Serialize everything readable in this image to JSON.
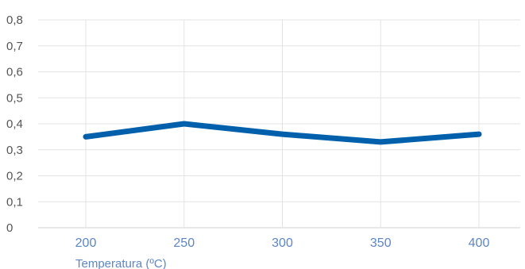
{
  "chart_data": {
    "type": "line",
    "x": [
      200,
      250,
      300,
      350,
      400
    ],
    "categories": [
      "200",
      "250",
      "300",
      "350",
      "400"
    ],
    "series": [
      {
        "values": [
          0.35,
          0.4,
          0.36,
          0.33,
          0.36
        ],
        "color": "#0060ac"
      }
    ],
    "xlabel": "Temperatura (ºC)",
    "ylabel": "",
    "ylim": [
      0,
      0.8
    ],
    "yticks": [
      "0",
      "0,1",
      "0,2",
      "0,3",
      "0,4",
      "0,5",
      "0,6",
      "0,7",
      "0,8"
    ],
    "grid": true,
    "colors": {
      "line": "#0060ac",
      "grid": "#e3e3e3",
      "xtick": "#5b86c7",
      "ytick": "#555555"
    }
  }
}
